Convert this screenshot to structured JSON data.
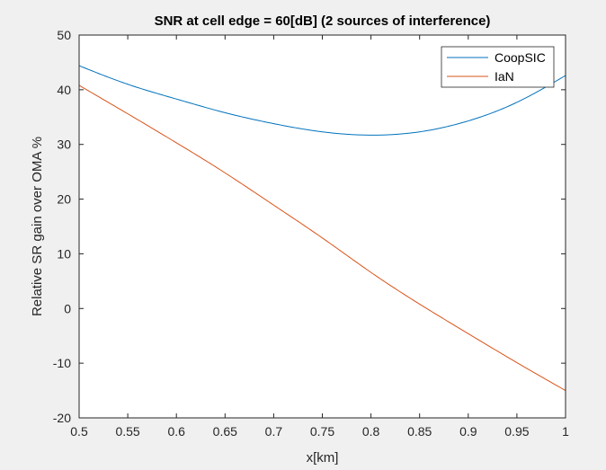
{
  "chart_data": {
    "type": "line",
    "title": "SNR at cell edge = 60[dB] (2 sources of interference)",
    "xlabel": "x[km]",
    "ylabel": "Relative SR gain over OMA %",
    "xlim": [
      0.5,
      1.0
    ],
    "ylim": [
      -20,
      50
    ],
    "xticks": [
      "0.5",
      "0.55",
      "0.6",
      "0.65",
      "0.7",
      "0.75",
      "0.8",
      "0.85",
      "0.9",
      "0.95",
      "1"
    ],
    "yticks": [
      "-20",
      "-10",
      "0",
      "10",
      "20",
      "30",
      "40",
      "50"
    ],
    "grid": false,
    "legend_position": "top-right",
    "x": [
      0.5,
      0.55,
      0.6,
      0.65,
      0.7,
      0.75,
      0.8,
      0.85,
      0.9,
      0.95,
      1.0
    ],
    "series": [
      {
        "name": "CoopSIC",
        "color": "#0072bd",
        "values": [
          44.4,
          41.0,
          38.3,
          35.8,
          33.8,
          32.3,
          31.7,
          32.3,
          34.3,
          37.7,
          42.6
        ]
      },
      {
        "name": "IaN",
        "color": "#d95319",
        "values": [
          40.8,
          35.6,
          30.3,
          24.8,
          18.9,
          12.9,
          6.6,
          0.8,
          -4.6,
          -9.9,
          -15.0
        ]
      }
    ]
  }
}
